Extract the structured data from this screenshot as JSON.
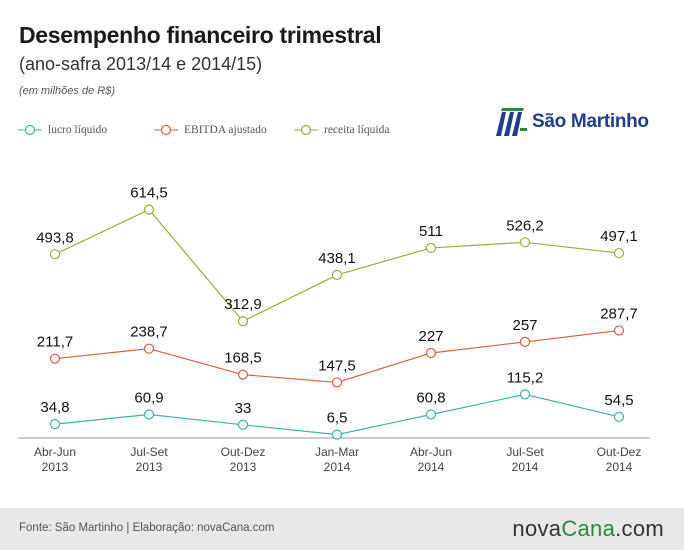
{
  "header": {
    "title": "Desempenho financeiro trimestral",
    "subtitle": "(ano-safra 2013/14 e 2014/15)",
    "unit": "(em milhões de R$)"
  },
  "logo": {
    "text": "São Martinho",
    "color": "#1f3f8a"
  },
  "footer": {
    "source": "Fonte: São Martinho | Elaboração: novaCana.com",
    "brand_prefix": "nova",
    "brand_accent": "Cana",
    "brand_suffix": ".com"
  },
  "chart_data": {
    "type": "line",
    "categories": [
      [
        "Abr-Jun",
        "2013"
      ],
      [
        "Jul-Set",
        "2013"
      ],
      [
        "Out-Dez",
        "2013"
      ],
      [
        "Jan-Mar",
        "2014"
      ],
      [
        "Abr-Jun",
        "2014"
      ],
      [
        "Jul-Set",
        "2014"
      ],
      [
        "Out-Dez",
        "2014"
      ]
    ],
    "series": [
      {
        "name": "lucro líquido",
        "color": "#3bb5a8",
        "values": [
          34.8,
          60.9,
          33,
          6.5,
          60.8,
          115.2,
          54.5
        ],
        "labels": [
          "34,8",
          "60,9",
          "33",
          "6,5",
          "60,8",
          "115,2",
          "54,5"
        ]
      },
      {
        "name": "EBITDA ajustado",
        "color": "#d9603b",
        "values": [
          211.7,
          238.7,
          168.5,
          147.5,
          227,
          257,
          287.7
        ],
        "labels": [
          "211,7",
          "238,7",
          "168,5",
          "147,5",
          "227",
          "257",
          "287,7"
        ]
      },
      {
        "name": "receita líquida",
        "color": "#9aac3c",
        "values": [
          493.8,
          614.5,
          312.9,
          438.1,
          511,
          526.2,
          497.1
        ],
        "labels": [
          "493,8",
          "614,5",
          "312,9",
          "438,1",
          "511",
          "526,2",
          "497,1"
        ]
      }
    ],
    "legend_position": "top-left",
    "grid": false
  }
}
